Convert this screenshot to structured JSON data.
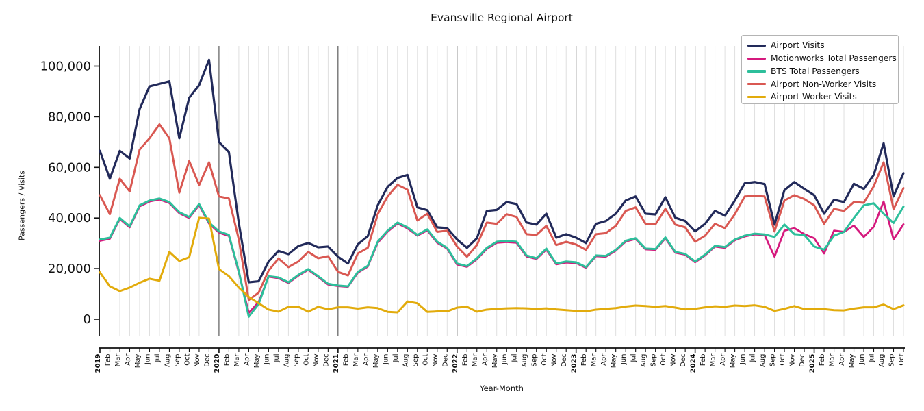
{
  "title": "Evansville Regional Airport",
  "x_axis": {
    "label": "Year-Month"
  },
  "y_axis": {
    "label": "Passengers / Visits",
    "tick_labels": [
      "0",
      "20,000",
      "40,000",
      "60,000",
      "80,000",
      "100,000"
    ],
    "tick_values": [
      0,
      20000,
      40000,
      60000,
      80000,
      100000
    ]
  },
  "legend": {
    "position": "upper right"
  },
  "chart_data": {
    "type": "line",
    "title": "Evansville Regional Airport",
    "xlabel": "Year-Month",
    "ylabel": "Passengers / Visits",
    "ylim": [
      0,
      108000
    ],
    "grid": "vertical-monthly",
    "categories": [
      "2019",
      "Feb",
      "Mar",
      "Apr",
      "May",
      "Jun",
      "Jul",
      "Aug",
      "Sep",
      "Oct",
      "Nov",
      "Dec",
      "2020",
      "Feb",
      "Mar",
      "Apr",
      "May",
      "Jun",
      "Jul",
      "Aug",
      "Sep",
      "Oct",
      "Nov",
      "Dec",
      "2021",
      "Feb",
      "Mar",
      "Apr",
      "May",
      "Jun",
      "Jul",
      "Aug",
      "Sep",
      "Oct",
      "Nov",
      "Dec",
      "2022",
      "Feb",
      "Mar",
      "Apr",
      "May",
      "Jun",
      "Jul",
      "Aug",
      "Sep",
      "Oct",
      "Nov",
      "Dec",
      "2023",
      "Feb",
      "Mar",
      "Apr",
      "May",
      "Jun",
      "Jul",
      "Aug",
      "Sep",
      "Oct",
      "Nov",
      "Dec",
      "2024",
      "Feb",
      "Mar",
      "Apr",
      "May",
      "Jun",
      "Jul",
      "Aug",
      "Sep",
      "Oct",
      "Nov",
      "Dec",
      "2025",
      "Feb",
      "Mar",
      "Apr",
      "May",
      "Jun",
      "Jul",
      "Aug",
      "Sep",
      "Oct"
    ],
    "series": [
      {
        "name": "Airport Visits",
        "color": "#222a5a",
        "width": 3.2,
        "values": [
          66500,
          55500,
          66500,
          63500,
          83000,
          92000,
          93000,
          94000,
          71500,
          87500,
          92500,
          102500,
          70000,
          66000,
          38000,
          14600,
          15000,
          22800,
          27000,
          25700,
          28900,
          30100,
          28400,
          28700,
          24700,
          22000,
          29600,
          32800,
          45000,
          52300,
          55800,
          57000,
          44200,
          43100,
          36300,
          36000,
          31500,
          28200,
          32000,
          42800,
          43200,
          46300,
          45500,
          38200,
          37400,
          41700,
          32200,
          33600,
          32200,
          30100,
          37700,
          38800,
          41700,
          46900,
          48500,
          41700,
          41400,
          48200,
          40100,
          38800,
          34700,
          37700,
          42800,
          40900,
          46900,
          53700,
          54200,
          53400,
          37400,
          51000,
          54200,
          51500,
          49000,
          41700,
          47200,
          46300,
          53500,
          51500,
          57000,
          69500,
          48500,
          57700
        ]
      },
      {
        "name": "Motionworks Total Passengers",
        "color": "#d5197d",
        "width": 2.8,
        "values": [
          31000,
          31800,
          39600,
          36300,
          44600,
          46500,
          47300,
          45900,
          41900,
          40000,
          45100,
          37800,
          34200,
          32900,
          18500,
          2500,
          6800,
          16800,
          16200,
          14300,
          17200,
          19500,
          16700,
          13700,
          13100,
          12800,
          18400,
          20800,
          30200,
          34600,
          37800,
          35900,
          33000,
          35100,
          30200,
          27900,
          21600,
          20700,
          23700,
          27800,
          30200,
          30500,
          30200,
          24800,
          23800,
          27500,
          21700,
          22400,
          22200,
          20300,
          24900,
          24700,
          27100,
          30700,
          31700,
          27600,
          27400,
          32000,
          26300,
          25500,
          22500,
          25200,
          28700,
          28200,
          31200,
          32700,
          33500,
          33300,
          24700,
          35000,
          36000,
          33600,
          32000,
          26000,
          35000,
          34500,
          37000,
          32500,
          36500,
          46500,
          31500,
          37500
        ]
      },
      {
        "name": "BTS Total Passengers",
        "color": "#2dbf9b",
        "width": 3.0,
        "values": [
          31500,
          32200,
          40000,
          36700,
          45000,
          46900,
          47700,
          46300,
          42300,
          40400,
          45500,
          38200,
          34700,
          33300,
          19000,
          1000,
          6000,
          17000,
          16500,
          14600,
          17500,
          19800,
          17000,
          14000,
          13300,
          13000,
          18700,
          21100,
          30600,
          35000,
          38200,
          36300,
          33300,
          35500,
          30600,
          28200,
          22000,
          21000,
          24100,
          28200,
          30600,
          30900,
          30600,
          25200,
          24100,
          27900,
          22000,
          22800,
          22500,
          20600,
          25200,
          25000,
          27400,
          31000,
          32000,
          27900,
          27700,
          32300,
          26600,
          25800,
          22800,
          25500,
          29000,
          28500,
          31500,
          33000,
          33800,
          33500,
          32500,
          37400,
          33600,
          33300,
          28700,
          27500,
          33000,
          34500,
          40000,
          45000,
          45800,
          41700,
          38000,
          44500
        ]
      },
      {
        "name": "Airport Non-Worker Visits",
        "color": "#d95852",
        "width": 3.0,
        "values": [
          49000,
          41500,
          55500,
          50500,
          67000,
          71500,
          77000,
          71500,
          50000,
          62500,
          53000,
          62000,
          48500,
          47700,
          31500,
          7600,
          10500,
          19200,
          24000,
          20600,
          22800,
          26600,
          24100,
          24900,
          18700,
          17300,
          26000,
          28200,
          41500,
          48500,
          53100,
          51200,
          39000,
          41700,
          34500,
          35000,
          28700,
          24700,
          29300,
          38200,
          37700,
          41500,
          40400,
          33600,
          33300,
          36900,
          29300,
          30600,
          29500,
          27400,
          33600,
          34000,
          36900,
          42800,
          44200,
          37700,
          37500,
          43600,
          37400,
          36300,
          30600,
          33000,
          37700,
          36000,
          41500,
          48500,
          48700,
          48500,
          34700,
          46900,
          49000,
          47500,
          45000,
          37700,
          43600,
          42800,
          46300,
          46000,
          52500,
          62000,
          43500,
          51800
        ]
      },
      {
        "name": "Airport Worker Visits",
        "color": "#e2ab0c",
        "width": 3.0,
        "values": [
          18500,
          13000,
          11100,
          12500,
          14400,
          16000,
          15200,
          26600,
          23000,
          24500,
          40100,
          39800,
          19800,
          17000,
          12500,
          8800,
          6300,
          3800,
          3000,
          4900,
          4900,
          3000,
          4900,
          3900,
          4700,
          4700,
          4200,
          4700,
          4400,
          2900,
          2700,
          7000,
          6300,
          2900,
          3100,
          3100,
          4600,
          4900,
          3000,
          3800,
          4100,
          4300,
          4400,
          4300,
          4100,
          4300,
          3900,
          3600,
          3300,
          3100,
          3800,
          4100,
          4400,
          5000,
          5400,
          5200,
          4900,
          5200,
          4600,
          3900,
          4100,
          4700,
          5100,
          4900,
          5400,
          5200,
          5500,
          4900,
          3300,
          4100,
          5200,
          4000,
          4000,
          4000,
          3600,
          3500,
          4200,
          4700,
          4700,
          5800,
          4000,
          5500
        ]
      }
    ]
  }
}
